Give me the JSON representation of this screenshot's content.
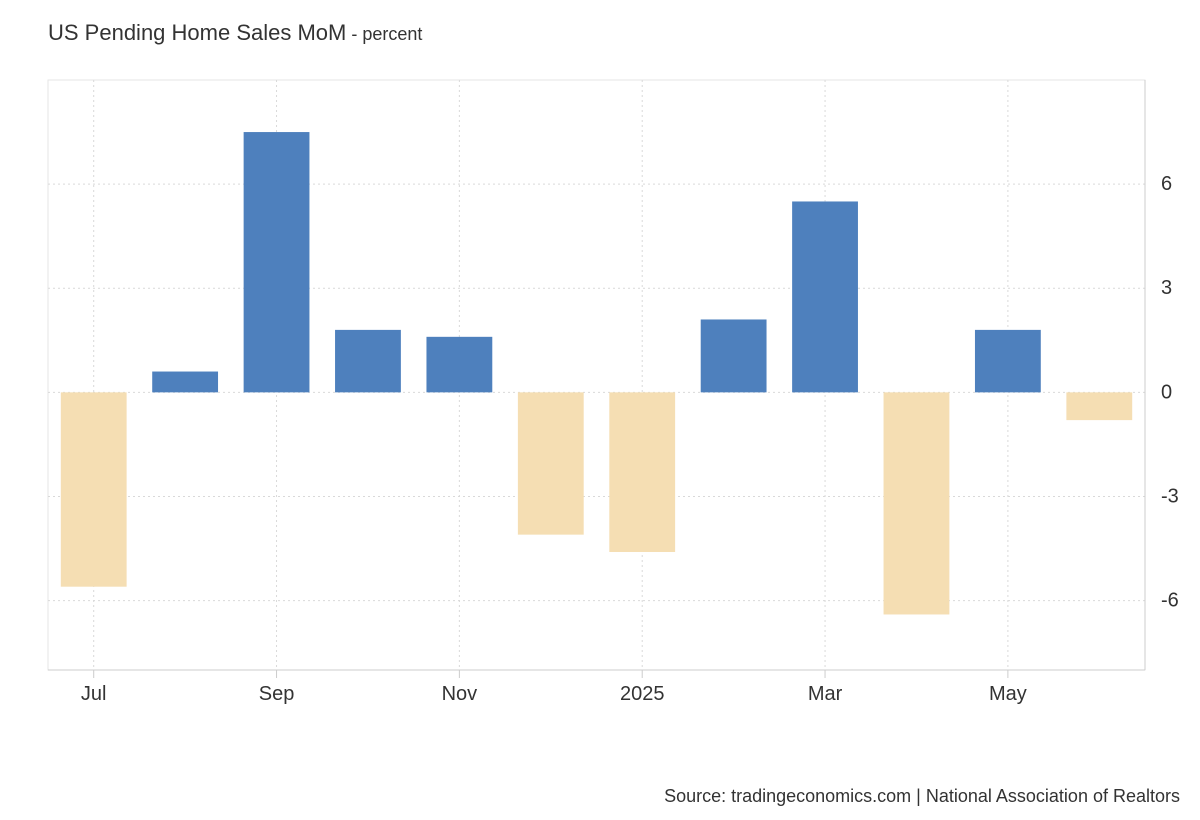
{
  "chart_data": {
    "type": "bar",
    "title": "US Pending Home Sales MoM",
    "subtitle": " - percent",
    "xlabel": "",
    "ylabel": "",
    "categories": [
      "2024-07",
      "2024-08",
      "2024-09",
      "2024-10",
      "2024-11",
      "2024-12",
      "2025-01",
      "2025-02",
      "2025-03",
      "2025-04",
      "2025-05",
      "2025-06"
    ],
    "values": [
      -5.6,
      0.6,
      7.5,
      1.8,
      1.6,
      -4.1,
      -4.6,
      2.1,
      5.5,
      -6.4,
      1.8,
      -0.8
    ],
    "x_tick_labels": [
      {
        "category": "2024-07",
        "label": "Jul"
      },
      {
        "category": "2024-09",
        "label": "Sep"
      },
      {
        "category": "2024-11",
        "label": "Nov"
      },
      {
        "category": "2025-01",
        "label": "2025"
      },
      {
        "category": "2025-03",
        "label": "Mar"
      },
      {
        "category": "2025-05",
        "label": "May"
      }
    ],
    "y_ticks": [
      6,
      3,
      0,
      -3,
      -6
    ],
    "ylim": [
      -8,
      9
    ],
    "y_axis_side": "right",
    "grid": true,
    "colors": {
      "positive": "#4e80bd",
      "negative": "#f5deb3"
    }
  },
  "source": "Source: tradingeconomics.com | National Association of Realtors"
}
